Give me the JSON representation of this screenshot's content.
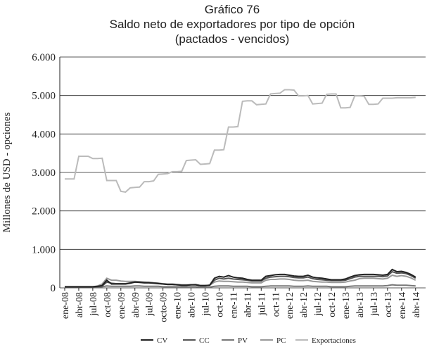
{
  "chart_data": {
    "type": "line",
    "title": "Gráfico 76",
    "subtitle": "Saldo neto de exportadores por tipo de opción",
    "subtitle2": "(pactados - vencidos)",
    "y_label": "Millones de USD - opciones",
    "categories": [
      "ene-08",
      null,
      null,
      "abr-08",
      null,
      null,
      "jul-08",
      null,
      null,
      "oct-08",
      null,
      null,
      "ene-09",
      null,
      null,
      "abr-09",
      null,
      null,
      "jul-09",
      null,
      null,
      "octo-09",
      null,
      null,
      "ene-10",
      null,
      null,
      "abr-10",
      null,
      null,
      "jul-10",
      null,
      null,
      "oct-10",
      null,
      null,
      "ene-11",
      null,
      null,
      "abr-11",
      null,
      null,
      "jul-11",
      null,
      null,
      "oct-11",
      null,
      null,
      "ene-12",
      null,
      null,
      "abr-12",
      null,
      null,
      "jul-12",
      null,
      null,
      "oct-12",
      null,
      null,
      "ene-13",
      null,
      null,
      "abr-13",
      null,
      null,
      "jul-13",
      null,
      null,
      "oct-13",
      null,
      null,
      "ene-14",
      null,
      null,
      "abr-14"
    ],
    "series": [
      {
        "name": "CV",
        "color": "#222222",
        "values": [
          30,
          30,
          30,
          30,
          30,
          30,
          30,
          40,
          60,
          200,
          100,
          100,
          100,
          100,
          120,
          150,
          140,
          130,
          130,
          120,
          110,
          100,
          90,
          90,
          80,
          70,
          70,
          80,
          80,
          60,
          60,
          70,
          250,
          300,
          280,
          320,
          280,
          260,
          250,
          220,
          200,
          200,
          200,
          300,
          320,
          340,
          350,
          350,
          330,
          310,
          300,
          300,
          330,
          280,
          260,
          250,
          230,
          210,
          210,
          210,
          230,
          280,
          320,
          340,
          350,
          350,
          350,
          340,
          330,
          350,
          480,
          420,
          430,
          400,
          350,
          280
        ]
      },
      {
        "name": "CC",
        "color": "#555555",
        "values": [
          20,
          20,
          20,
          20,
          20,
          20,
          20,
          30,
          50,
          150,
          120,
          110,
          110,
          110,
          130,
          150,
          150,
          140,
          140,
          130,
          120,
          100,
          90,
          90,
          80,
          70,
          70,
          80,
          80,
          60,
          60,
          70,
          200,
          250,
          230,
          250,
          230,
          220,
          210,
          200,
          180,
          180,
          180,
          250,
          280,
          290,
          300,
          300,
          290,
          270,
          260,
          260,
          280,
          240,
          220,
          210,
          200,
          190,
          190,
          190,
          200,
          240,
          280,
          300,
          300,
          300,
          300,
          300,
          290,
          310,
          420,
          380,
          390,
          370,
          320,
          250
        ]
      },
      {
        "name": "PV",
        "color": "#777777",
        "values": [
          20,
          20,
          20,
          20,
          20,
          20,
          20,
          20,
          30,
          50,
          40,
          40,
          40,
          40,
          40,
          50,
          50,
          40,
          40,
          40,
          40,
          30,
          30,
          30,
          30,
          30,
          30,
          30,
          30,
          20,
          20,
          20,
          40,
          50,
          50,
          50,
          40,
          40,
          40,
          40,
          30,
          30,
          30,
          40,
          50,
          50,
          50,
          50,
          50,
          40,
          40,
          40,
          50,
          40,
          40,
          40,
          40,
          30,
          30,
          30,
          30,
          40,
          50,
          50,
          50,
          50,
          50,
          50,
          50,
          60,
          80,
          70,
          70,
          70,
          60,
          50
        ]
      },
      {
        "name": "PC",
        "color": "#999999",
        "values": [
          30,
          30,
          30,
          30,
          30,
          30,
          30,
          50,
          100,
          250,
          200,
          200,
          180,
          170,
          170,
          170,
          160,
          150,
          140,
          130,
          120,
          110,
          100,
          100,
          90,
          80,
          80,
          80,
          90,
          60,
          60,
          70,
          150,
          180,
          170,
          170,
          160,
          150,
          150,
          140,
          130,
          130,
          130,
          200,
          220,
          220,
          230,
          230,
          220,
          200,
          190,
          190,
          200,
          170,
          160,
          150,
          150,
          140,
          140,
          140,
          150,
          180,
          200,
          240,
          250,
          250,
          250,
          240,
          230,
          250,
          330,
          300,
          320,
          300,
          260,
          200
        ]
      },
      {
        "name": "Exportaciones",
        "color": "#bbbbbb",
        "values": [
          2830,
          2830,
          2830,
          3420,
          3420,
          3420,
          3360,
          3360,
          3370,
          2790,
          2790,
          2790,
          2510,
          2490,
          2600,
          2610,
          2620,
          2760,
          2760,
          2780,
          2950,
          2960,
          2970,
          3020,
          3020,
          3030,
          3310,
          3320,
          3330,
          3210,
          3220,
          3230,
          3580,
          3580,
          3590,
          4180,
          4180,
          4190,
          4850,
          4860,
          4860,
          4760,
          4770,
          4780,
          5040,
          5050,
          5060,
          5150,
          5150,
          5140,
          4990,
          4990,
          5000,
          4780,
          4790,
          4800,
          5030,
          5040,
          5040,
          4680,
          4680,
          4690,
          4990,
          4990,
          4980,
          4770,
          4770,
          4780,
          4930,
          4930,
          4930,
          4940,
          4940,
          4940,
          4940,
          4950
        ]
      }
    ],
    "ylim": [
      0,
      6000
    ],
    "yticks": [
      0,
      {
        "value": 1000,
        "label": "1.000"
      },
      {
        "value": 2000,
        "label": "2.000"
      },
      {
        "value": 3000,
        "label": "3.000"
      },
      {
        "value": 4000,
        "label": "4.000"
      },
      {
        "value": 5000,
        "label": "5.000"
      },
      {
        "value": 6000,
        "label": "6.000"
      }
    ],
    "grid": true,
    "legend": "bottom"
  }
}
